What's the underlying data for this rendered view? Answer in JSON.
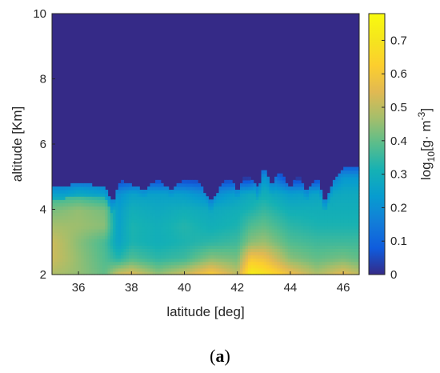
{
  "chart_data": {
    "type": "heatmap",
    "title": "",
    "xlabel": "latitude [deg]",
    "ylabel": "altitude [Km]",
    "xlim": [
      35,
      46.6
    ],
    "ylim": [
      2,
      10
    ],
    "xticks": [
      "36",
      "38",
      "40",
      "42",
      "44",
      "46"
    ],
    "yticks": [
      "2",
      "4",
      "6",
      "8",
      "10"
    ],
    "colorbar": {
      "label_main": "log",
      "label_sub": "10",
      "label_rest": "[g· m",
      "label_sup": "-3",
      "label_end": "]",
      "range": [
        0,
        0.78
      ],
      "ticks": [
        "0",
        "0.1",
        "0.2",
        "0.3",
        "0.4",
        "0.5",
        "0.6",
        "0.7"
      ],
      "colormap": "parula"
    },
    "background_value": 0.0,
    "top_boundary": {
      "latitude": [
        35.0,
        35.5,
        36.0,
        36.5,
        37.0,
        37.3,
        37.6,
        38.0,
        38.5,
        39.0,
        39.5,
        40.0,
        40.5,
        41.0,
        41.5,
        41.8,
        42.0,
        42.2,
        42.5,
        42.8,
        43.0,
        43.3,
        43.6,
        44.0,
        44.3,
        44.6,
        45.0,
        45.3,
        45.6,
        46.0,
        46.3,
        46.6
      ],
      "altitude": [
        4.7,
        4.7,
        4.8,
        4.75,
        4.7,
        4.2,
        4.9,
        4.75,
        4.6,
        4.9,
        4.6,
        4.9,
        4.85,
        4.2,
        4.85,
        4.9,
        4.5,
        4.95,
        5.0,
        4.6,
        5.35,
        4.7,
        5.2,
        4.6,
        5.15,
        4.5,
        5.0,
        4.2,
        4.8,
        5.3,
        5.35,
        5.3
      ]
    },
    "profile_altitude": [
      2.0,
      2.5,
      3.0,
      3.5,
      4.0,
      4.5,
      5.0,
      5.5
    ],
    "profiles": [
      {
        "latitude": 35.0,
        "values": [
          0.48,
          0.52,
          0.52,
          0.47,
          0.42,
          0.33,
          0.0,
          0.0
        ]
      },
      {
        "latitude": 36.0,
        "values": [
          0.45,
          0.45,
          0.44,
          0.46,
          0.45,
          0.34,
          0.0,
          0.0
        ]
      },
      {
        "latitude": 37.0,
        "values": [
          0.4,
          0.38,
          0.37,
          0.44,
          0.42,
          0.3,
          0.0,
          0.0
        ]
      },
      {
        "latitude": 37.5,
        "values": [
          0.52,
          0.33,
          0.26,
          0.25,
          0.24,
          0.2,
          0.0,
          0.0
        ]
      },
      {
        "latitude": 38.0,
        "values": [
          0.55,
          0.38,
          0.32,
          0.32,
          0.3,
          0.25,
          0.0,
          0.0
        ]
      },
      {
        "latitude": 39.0,
        "values": [
          0.45,
          0.34,
          0.3,
          0.3,
          0.28,
          0.25,
          0.0,
          0.0
        ]
      },
      {
        "latitude": 40.0,
        "values": [
          0.52,
          0.36,
          0.32,
          0.33,
          0.3,
          0.24,
          0.0,
          0.0
        ]
      },
      {
        "latitude": 41.0,
        "values": [
          0.62,
          0.44,
          0.34,
          0.3,
          0.28,
          0.18,
          0.0,
          0.0
        ]
      },
      {
        "latitude": 42.0,
        "values": [
          0.5,
          0.42,
          0.36,
          0.32,
          0.3,
          0.25,
          0.0,
          0.0
        ]
      },
      {
        "latitude": 42.5,
        "values": [
          0.74,
          0.6,
          0.44,
          0.38,
          0.32,
          0.28,
          0.0,
          0.0
        ]
      },
      {
        "latitude": 43.0,
        "values": [
          0.7,
          0.58,
          0.46,
          0.4,
          0.35,
          0.3,
          0.22,
          0.0
        ]
      },
      {
        "latitude": 44.0,
        "values": [
          0.58,
          0.44,
          0.38,
          0.34,
          0.3,
          0.24,
          0.0,
          0.0
        ]
      },
      {
        "latitude": 45.0,
        "values": [
          0.48,
          0.4,
          0.36,
          0.32,
          0.3,
          0.26,
          0.0,
          0.0
        ]
      },
      {
        "latitude": 46.0,
        "values": [
          0.56,
          0.42,
          0.36,
          0.32,
          0.3,
          0.28,
          0.22,
          0.0
        ]
      },
      {
        "latitude": 46.6,
        "values": [
          0.5,
          0.4,
          0.36,
          0.32,
          0.3,
          0.28,
          0.22,
          0.0
        ]
      }
    ]
  },
  "panel_label": {
    "open": "(",
    "letter": "a",
    "close": ")"
  }
}
